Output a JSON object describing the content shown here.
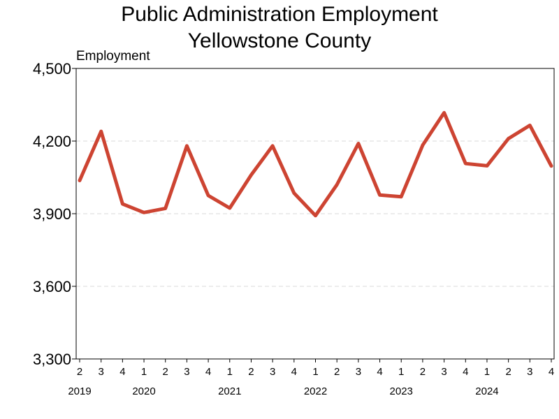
{
  "chart_data": {
    "type": "line",
    "title": "Public Administration Employment",
    "subtitle": "Yellowstone County",
    "ylabel": "Employment",
    "xlabel": "",
    "ylim": [
      3300,
      4500
    ],
    "yticks": [
      3300,
      3600,
      3900,
      4200,
      4500
    ],
    "ytick_labels": [
      "3,300",
      "3,600",
      "3,900",
      "4,200",
      "4,500"
    ],
    "grid": "horizontal-dashed",
    "x": [
      "2019 Q2",
      "2019 Q3",
      "2019 Q4",
      "2020 Q1",
      "2020 Q2",
      "2020 Q3",
      "2020 Q4",
      "2021 Q1",
      "2021 Q2",
      "2021 Q3",
      "2021 Q4",
      "2022 Q1",
      "2022 Q2",
      "2022 Q3",
      "2022 Q4",
      "2023 Q1",
      "2023 Q2",
      "2023 Q3",
      "2023 Q4",
      "2024 Q1",
      "2024 Q2",
      "2024 Q3",
      "2024 Q4"
    ],
    "quarter_labels": [
      "2",
      "3",
      "4",
      "1",
      "2",
      "3",
      "4",
      "1",
      "2",
      "3",
      "4",
      "1",
      "2",
      "3",
      "4",
      "1",
      "2",
      "3",
      "4",
      "1",
      "2",
      "3",
      "4"
    ],
    "year_labels": [
      {
        "label": "2019",
        "index": 0
      },
      {
        "label": "2020",
        "index": 3
      },
      {
        "label": "2021",
        "index": 7
      },
      {
        "label": "2022",
        "index": 11
      },
      {
        "label": "2023",
        "index": 15
      },
      {
        "label": "2024",
        "index": 19
      }
    ],
    "series": [
      {
        "color": "#cd4432",
        "values": [
          4037,
          4240,
          3940,
          3905,
          3922,
          4180,
          3975,
          3923,
          4060,
          4180,
          3985,
          3892,
          4020,
          4190,
          3977,
          3970,
          4183,
          4317,
          4107,
          4098,
          4210,
          4265,
          4097
        ]
      }
    ]
  }
}
